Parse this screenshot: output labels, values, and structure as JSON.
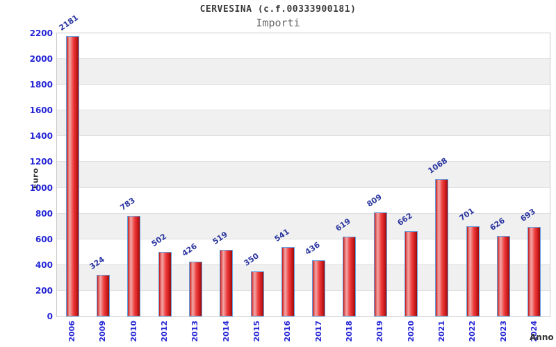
{
  "chart_data": {
    "type": "bar",
    "title": "CERVESINA (c.f.00333900181)",
    "subtitle": "Importi",
    "xlabel": "Anno",
    "ylabel": "Euro",
    "categories": [
      "2006",
      "2009",
      "2010",
      "2012",
      "2013",
      "2014",
      "2015",
      "2016",
      "2017",
      "2018",
      "2019",
      "2020",
      "2021",
      "2022",
      "2023",
      "2024"
    ],
    "values": [
      2181,
      324,
      783,
      502,
      426,
      519,
      350,
      541,
      436,
      619,
      809,
      662,
      1068,
      701,
      626,
      693
    ],
    "ylim": [
      0,
      2200
    ],
    "ytick_step": 200,
    "yticks": [
      0,
      200,
      400,
      600,
      800,
      1000,
      1200,
      1400,
      1600,
      1800,
      2000,
      2200
    ],
    "grid": "horizontal gridlines with alternating gray bands",
    "legend": "none",
    "colors": {
      "bar_fill_main": "#ee4040",
      "bar_fill_highlight": "#f2a8a8",
      "bar_fill_dark": "#9c0a0a",
      "bar_border": "#62a1e0",
      "axis_tick_label": "#2525d6",
      "data_label": "#2b36a0",
      "band_gray": "#f0f0f0",
      "plot_border": "#c9c9c9",
      "title_color": "#3a3a3a",
      "subtitle_color": "#666666",
      "axis_title_color": "#333333",
      "background": "#ffffff"
    }
  }
}
